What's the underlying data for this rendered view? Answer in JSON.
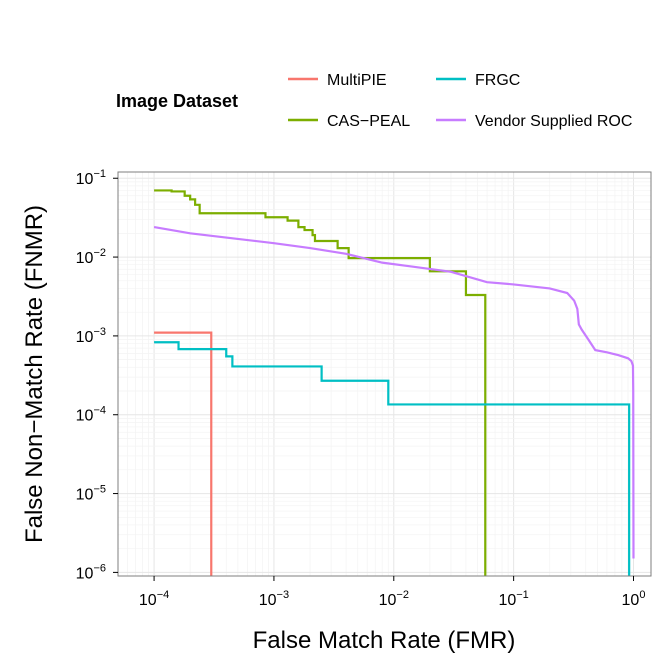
{
  "chart_data": {
    "type": "line",
    "xlabel": "False Match Rate (FMR)",
    "ylabel": "False Non−Match Rate (FNMR)",
    "xscale": "log10",
    "yscale": "log10",
    "xlim": [
      5e-05,
      1.4
    ],
    "ylim": [
      9e-07,
      0.12
    ],
    "x_ticks": [
      {
        "base": "10",
        "exp": "−4",
        "value": 0.0001
      },
      {
        "base": "10",
        "exp": "−3",
        "value": 0.001
      },
      {
        "base": "10",
        "exp": "−2",
        "value": 0.01
      },
      {
        "base": "10",
        "exp": "−1",
        "value": 0.1
      },
      {
        "base": "10",
        "exp": "0",
        "value": 1
      }
    ],
    "y_ticks": [
      {
        "base": "10",
        "exp": "−1",
        "value": 0.1
      },
      {
        "base": "10",
        "exp": "−2",
        "value": 0.01
      },
      {
        "base": "10",
        "exp": "−3",
        "value": 0.001
      },
      {
        "base": "10",
        "exp": "−4",
        "value": 0.0001
      },
      {
        "base": "10",
        "exp": "−5",
        "value": 1e-05
      },
      {
        "base": "10",
        "exp": "−6",
        "value": 1e-06
      }
    ],
    "grid": true,
    "legend": {
      "title": "Image Dataset",
      "position": "top",
      "entries": [
        "MultiPIE",
        "FRGC",
        "CAS−PEAL",
        "Vendor Supplied ROC"
      ]
    },
    "series": [
      {
        "name": "MultiPIE",
        "color": "#F8766D",
        "points": [
          [
            0.0001,
            0.0011
          ],
          [
            0.0003,
            0.0011
          ],
          [
            0.0003,
            9e-07
          ]
        ]
      },
      {
        "name": "CAS−PEAL",
        "color": "#7CAE00",
        "points": [
          [
            0.0001,
            0.07
          ],
          [
            0.00014,
            0.07
          ],
          [
            0.00014,
            0.068
          ],
          [
            0.00018,
            0.068
          ],
          [
            0.00018,
            0.06
          ],
          [
            0.0002,
            0.06
          ],
          [
            0.0002,
            0.054
          ],
          [
            0.00022,
            0.054
          ],
          [
            0.00022,
            0.046
          ],
          [
            0.00024,
            0.046
          ],
          [
            0.00024,
            0.036
          ],
          [
            0.00085,
            0.036
          ],
          [
            0.00085,
            0.032
          ],
          [
            0.0013,
            0.032
          ],
          [
            0.0013,
            0.029
          ],
          [
            0.0016,
            0.029
          ],
          [
            0.0016,
            0.024
          ],
          [
            0.0018,
            0.024
          ],
          [
            0.0018,
            0.022
          ],
          [
            0.0021,
            0.022
          ],
          [
            0.0021,
            0.019
          ],
          [
            0.0022,
            0.019
          ],
          [
            0.0022,
            0.016
          ],
          [
            0.0034,
            0.016
          ],
          [
            0.0034,
            0.013
          ],
          [
            0.0042,
            0.013
          ],
          [
            0.0042,
            0.0097
          ],
          [
            0.02,
            0.0097
          ],
          [
            0.02,
            0.0066
          ],
          [
            0.04,
            0.0066
          ],
          [
            0.04,
            0.0033
          ],
          [
            0.058,
            0.0033
          ],
          [
            0.058,
            9e-07
          ]
        ]
      },
      {
        "name": "FRGC",
        "color": "#00BFC4",
        "points": [
          [
            0.0001,
            0.00083
          ],
          [
            0.00016,
            0.00083
          ],
          [
            0.00016,
            0.00068
          ],
          [
            0.0004,
            0.00068
          ],
          [
            0.0004,
            0.00055
          ],
          [
            0.00045,
            0.00055
          ],
          [
            0.00045,
            0.00041
          ],
          [
            0.0025,
            0.00041
          ],
          [
            0.0025,
            0.00027
          ],
          [
            0.009,
            0.00027
          ],
          [
            0.009,
            0.000135
          ],
          [
            0.92,
            0.000135
          ],
          [
            0.92,
            9e-07
          ]
        ]
      },
      {
        "name": "Vendor Supplied ROC",
        "color": "#C77CFF",
        "points": [
          [
            0.0001,
            0.024
          ],
          [
            0.0002,
            0.02
          ],
          [
            0.0005,
            0.017
          ],
          [
            0.001,
            0.015
          ],
          [
            0.002,
            0.013
          ],
          [
            0.004,
            0.011
          ],
          [
            0.008,
            0.0085
          ],
          [
            0.015,
            0.0075
          ],
          [
            0.03,
            0.0065
          ],
          [
            0.06,
            0.0048
          ],
          [
            0.1,
            0.0045
          ],
          [
            0.2,
            0.004
          ],
          [
            0.28,
            0.0035
          ],
          [
            0.32,
            0.0028
          ],
          [
            0.34,
            0.0022
          ],
          [
            0.35,
            0.0014
          ],
          [
            0.37,
            0.0012
          ],
          [
            0.42,
            0.0009
          ],
          [
            0.48,
            0.00066
          ],
          [
            0.6,
            0.00062
          ],
          [
            0.75,
            0.00057
          ],
          [
            0.9,
            0.00052
          ],
          [
            0.96,
            0.00048
          ],
          [
            0.99,
            0.00042
          ],
          [
            0.995,
            0.0002
          ],
          [
            1.0,
            1.5e-06
          ]
        ]
      }
    ]
  }
}
